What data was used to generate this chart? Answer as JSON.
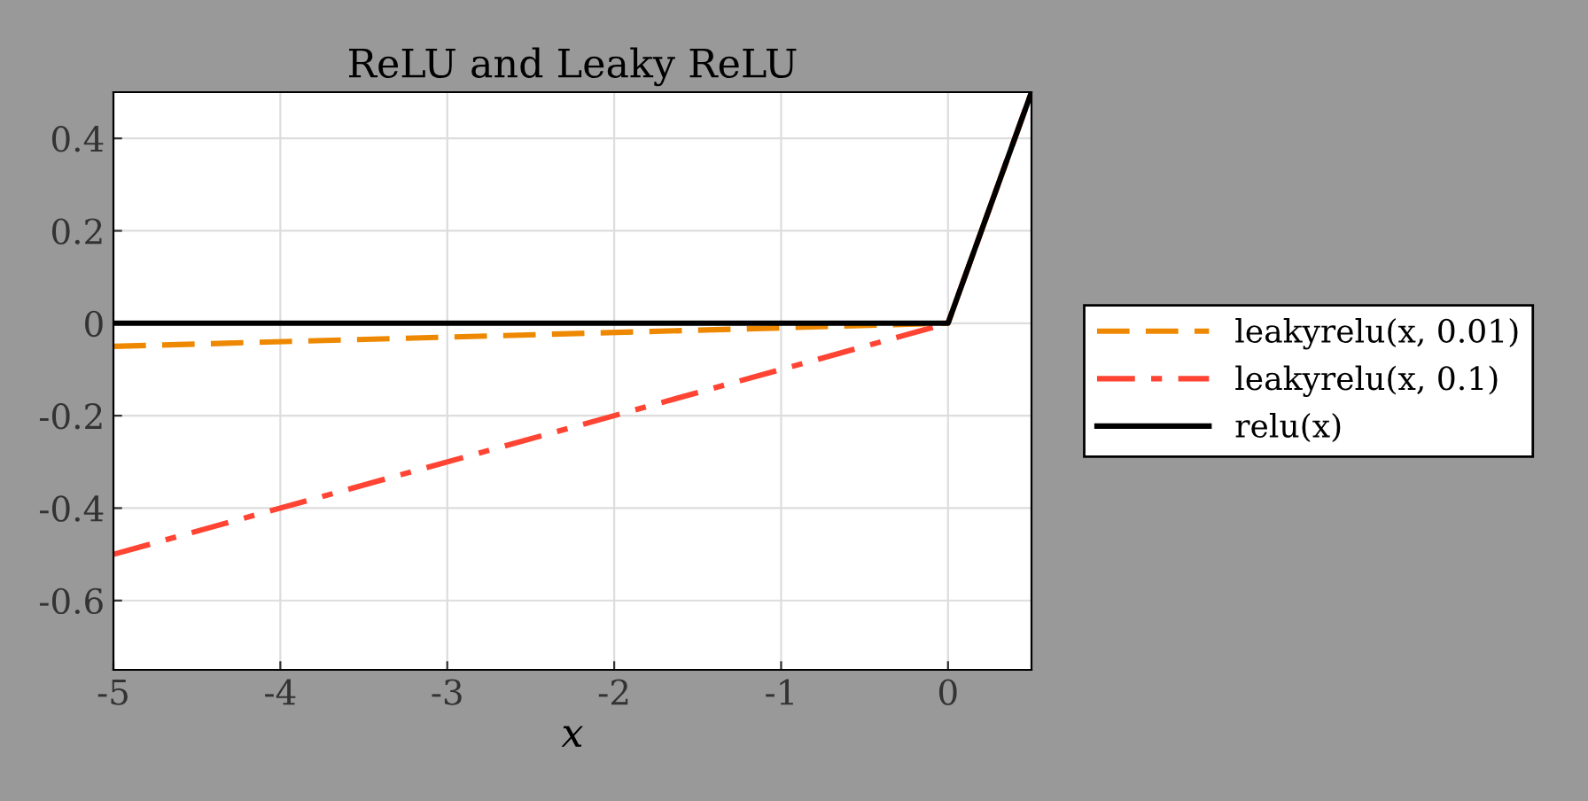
{
  "chart_data": {
    "type": "line",
    "title": "ReLU and Leaky ReLU",
    "xlabel": "x",
    "series": [
      {
        "name": "leakyrelu(x, 0.01)",
        "color": "#ee8800",
        "line_style": "dashed",
        "x": [
          -5,
          0,
          0.5
        ],
        "values": [
          -0.05,
          0,
          0.5
        ]
      },
      {
        "name": "leakyrelu(x, 0.1)",
        "color": "#ff4433",
        "line_style": "dashdot",
        "x": [
          -5,
          0,
          0.5
        ],
        "values": [
          -0.5,
          0,
          0.5
        ]
      },
      {
        "name": "relu(x)",
        "color": "#000000",
        "line_style": "solid",
        "x": [
          -5,
          0,
          0.5
        ],
        "values": [
          0,
          0,
          0.5
        ]
      }
    ],
    "xlim": [
      -5,
      0.5
    ],
    "ylim": [
      -0.75,
      0.5
    ],
    "xticks": [
      -5,
      -4,
      -3,
      -2,
      -1,
      0
    ],
    "yticks": [
      -0.6,
      -0.4,
      -0.2,
      0,
      0.2,
      0.4
    ],
    "grid": true,
    "legend": "right",
    "marker": "none"
  }
}
